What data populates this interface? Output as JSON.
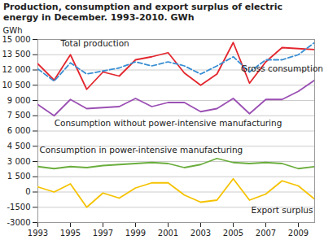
{
  "chart_data": {
    "type": "line",
    "title": "Production, consumption and export surplus of electric energy in December. 1993-2010. GWh",
    "y_label": "GWh",
    "x": [
      1993,
      1994,
      1995,
      1996,
      1997,
      1998,
      1999,
      2000,
      2001,
      2002,
      2003,
      2004,
      2005,
      2006,
      2007,
      2008,
      2009,
      2010
    ],
    "xlim": [
      1993,
      2010
    ],
    "xticks": [
      1993,
      1995,
      1997,
      1999,
      2001,
      2003,
      2005,
      2007,
      2009
    ],
    "ylim": [
      -3000,
      15000
    ],
    "yticks": [
      -3000,
      -1500,
      0,
      {
        "value": 1500,
        "label": "1 500"
      },
      {
        "value": 3000,
        "label": "3 000"
      },
      {
        "value": 4500,
        "label": "4 500"
      },
      {
        "value": 6000,
        "label": "6 000"
      },
      {
        "value": 7500,
        "label": "7 500"
      },
      {
        "value": 9000,
        "label": "9 000"
      },
      {
        "value": 10500,
        "label": "10 500"
      },
      {
        "value": 12000,
        "label": "12 000"
      },
      {
        "value": 13500,
        "label": "13 500"
      },
      {
        "value": 15000,
        "label": "15 000"
      }
    ],
    "grid": true,
    "series": [
      {
        "name": "Total production",
        "color": "#e3262e",
        "line_style": "solid",
        "values": [
          12600,
          11000,
          13500,
          10100,
          11800,
          11400,
          13000,
          13300,
          13700,
          11700,
          10500,
          11600,
          14700,
          10700,
          12800,
          14200,
          14100,
          14000
        ]
      },
      {
        "name": "Gross consumption",
        "color": "#3a8fd3",
        "line_style": "dashed",
        "values": [
          12100,
          10900,
          12700,
          11600,
          11900,
          12200,
          12800,
          12400,
          12800,
          12400,
          11600,
          12400,
          13300,
          11800,
          13000,
          13000,
          13500,
          14700
        ]
      },
      {
        "name": "Consumption without power-intensive manufacturing",
        "color": "#9b4fb3",
        "line_style": "solid",
        "values": [
          8600,
          7500,
          9100,
          8200,
          8300,
          8400,
          9200,
          8400,
          8800,
          8800,
          7900,
          8200,
          9200,
          7700,
          9100,
          9100,
          9900,
          11000
        ]
      },
      {
        "name": "Consumption in power-intensive manufacturing",
        "color": "#6aad3d",
        "line_style": "solid",
        "values": [
          2500,
          2300,
          2500,
          2400,
          2600,
          2700,
          2800,
          2900,
          2800,
          2400,
          2700,
          3300,
          2900,
          2800,
          2900,
          2800,
          2300,
          2500
        ]
      },
      {
        "name": "Export surplus",
        "color": "#f5c200",
        "line_style": "solid",
        "values": [
          500,
          0,
          800,
          -1500,
          -100,
          -600,
          400,
          900,
          900,
          -300,
          -1000,
          -800,
          1300,
          -800,
          -200,
          1100,
          600,
          -700
        ]
      }
    ]
  }
}
